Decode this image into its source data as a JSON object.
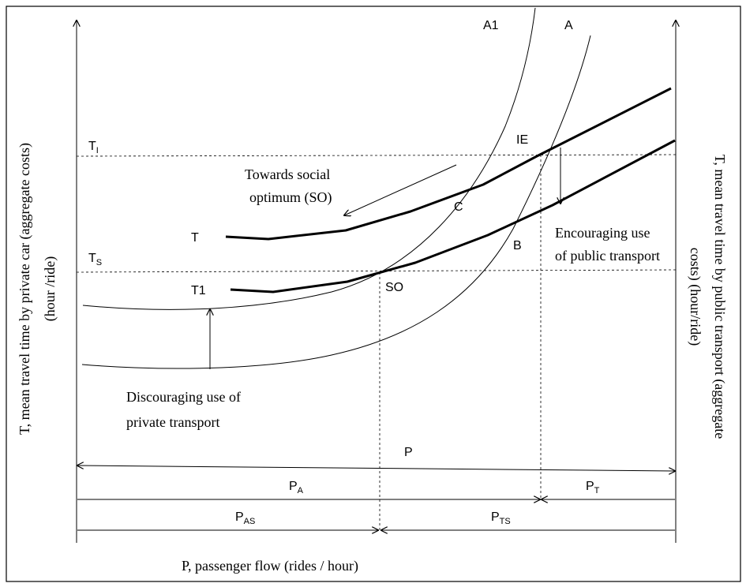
{
  "diagram": {
    "axes": {
      "left_label_line1": "T, mean travel time by private car (aggregate costs)",
      "left_label_line2": "(hour /ride)",
      "right_label_line1": "T, mean travel time by public transport (aggregate",
      "right_label_line2": "costs) (hour/ride)",
      "bottom_label": "P, passenger flow (rides / hour)"
    },
    "curve_labels": {
      "a1": "A1",
      "a": "A",
      "t": "T",
      "t1": "T1",
      "ie": "IE",
      "c": "C",
      "b": "B",
      "so": "SO"
    },
    "level_labels": {
      "ti_main": "T",
      "ti_sub": "I",
      "ts_main": "T",
      "ts_sub": "S"
    },
    "annotations": {
      "towards_line1": "Towards social",
      "towards_line2": "optimum (SO)",
      "encouraging_line1": "Encouraging use",
      "encouraging_line2": "of public transport",
      "discouraging_line1": "Discouraging use of",
      "discouraging_line2": "private transport"
    },
    "dimensions": {
      "p": "P",
      "pa_main": "P",
      "pa_sub": "A",
      "pt_main": "P",
      "pt_sub": "T",
      "pas_main": "P",
      "pas_sub": "AS",
      "pts_main": "P",
      "pts_sub": "TS"
    }
  }
}
